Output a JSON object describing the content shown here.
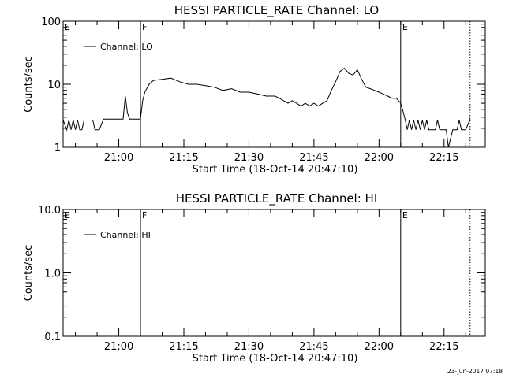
{
  "footer": {
    "timestamp": "23-Jun-2017 07:18"
  },
  "chart_data": [
    {
      "type": "line",
      "title": "HESSI PARTICLE_RATE Channel: LO",
      "xlabel": "Start Time (18-Oct-14 20:47:10)",
      "ylabel": "Counts/sec",
      "yscale": "log",
      "xlim": [
        "20:47:10",
        "22:24:30"
      ],
      "ylim": [
        1,
        100
      ],
      "xticks": [
        "21:00",
        "21:15",
        "21:30",
        "21:45",
        "22:00",
        "22:15"
      ],
      "yticks": [
        {
          "value": 1,
          "label": "1"
        },
        {
          "value": 10,
          "label": "10"
        },
        {
          "value": 100,
          "label": "100"
        }
      ],
      "legend": {
        "position": "top-left",
        "entries": [
          "Channel: LO"
        ]
      },
      "markers": [
        {
          "time": "21:05:00",
          "label": "F",
          "style": "solid"
        },
        {
          "time": "22:05:00",
          "label": "E",
          "style": "solid"
        },
        {
          "time": "22:21:00",
          "label": "",
          "style": "dotted"
        }
      ],
      "corner_label": "E",
      "series": [
        {
          "name": "Channel: LO",
          "x": [
            "20:47:10",
            "20:48:00",
            "20:48:30",
            "20:49:00",
            "20:49:30",
            "20:50:00",
            "20:50:30",
            "20:51:00",
            "20:51:30",
            "20:52:00",
            "20:53:00",
            "20:54:00",
            "20:54:30",
            "20:55:30",
            "20:56:30",
            "20:58:00",
            "21:00:00",
            "21:01:00",
            "21:01:30",
            "21:02:00",
            "21:02:30",
            "21:05:00",
            "21:05:30",
            "21:06:00",
            "21:07:00",
            "21:08:00",
            "21:10:00",
            "21:12:00",
            "21:14:00",
            "21:16:00",
            "21:18:00",
            "21:20:00",
            "21:22:00",
            "21:24:00",
            "21:26:00",
            "21:28:00",
            "21:30:00",
            "21:32:00",
            "21:34:00",
            "21:36:00",
            "21:37:00",
            "21:38:00",
            "21:39:00",
            "21:40:00",
            "21:41:00",
            "21:42:00",
            "21:43:00",
            "21:44:00",
            "21:45:00",
            "21:46:00",
            "21:47:00",
            "21:48:00",
            "21:49:00",
            "21:50:00",
            "21:51:00",
            "21:52:00",
            "21:53:00",
            "21:54:00",
            "21:55:00",
            "21:56:00",
            "21:57:00",
            "21:58:00",
            "21:59:00",
            "22:00:00",
            "22:01:00",
            "22:02:00",
            "22:03:00",
            "22:04:00",
            "22:05:00",
            "22:05:30",
            "22:06:00",
            "22:06:30",
            "22:07:00",
            "22:07:30",
            "22:08:00",
            "22:08:30",
            "22:09:00",
            "22:09:30",
            "22:10:00",
            "22:10:30",
            "22:11:00",
            "22:11:30",
            "22:12:00",
            "22:12:30",
            "22:13:00",
            "22:13:30",
            "22:14:00",
            "22:14:30",
            "22:15:00",
            "22:15:30",
            "22:16:00",
            "22:17:00",
            "22:18:00",
            "22:18:30",
            "22:19:00",
            "22:20:00",
            "22:21:00"
          ],
          "y": [
            2.7,
            1.9,
            2.7,
            1.9,
            2.7,
            1.9,
            2.7,
            1.9,
            1.9,
            2.7,
            2.7,
            2.7,
            1.9,
            1.9,
            2.8,
            2.8,
            2.8,
            2.8,
            6.5,
            3.5,
            2.8,
            2.8,
            5.5,
            7.5,
            10,
            11.5,
            12,
            12.5,
            11,
            10,
            10,
            9.5,
            9,
            8,
            8.5,
            7.5,
            7.5,
            7,
            6.5,
            6.5,
            6,
            5.5,
            5,
            5.5,
            5,
            4.5,
            5,
            4.5,
            5,
            4.5,
            5,
            5.5,
            8,
            11,
            16,
            18,
            15,
            14,
            17,
            12,
            9,
            8.5,
            8,
            7.5,
            7,
            6.5,
            6,
            6,
            5,
            3.8,
            2.8,
            1.9,
            2.7,
            1.9,
            2.7,
            1.9,
            2.7,
            1.9,
            2.7,
            1.9,
            2.7,
            1.9,
            1.9,
            1.9,
            1.9,
            2.7,
            1.9,
            1.9,
            1.9,
            1.9,
            1.0,
            1.9,
            1.9,
            2.7,
            1.9,
            1.9,
            2.8
          ]
        }
      ]
    },
    {
      "type": "line",
      "title": "HESSI PARTICLE_RATE Channel: HI",
      "xlabel": "Start Time (18-Oct-14 20:47:10)",
      "ylabel": "Counts/sec",
      "yscale": "log",
      "xlim": [
        "20:47:10",
        "22:24:30"
      ],
      "ylim": [
        0.1,
        10
      ],
      "xticks": [
        "21:00",
        "21:15",
        "21:30",
        "21:45",
        "22:00",
        "22:15"
      ],
      "yticks": [
        {
          "value": 0.1,
          "label": "0.1"
        },
        {
          "value": 1,
          "label": "1.0"
        },
        {
          "value": 10,
          "label": "10.0"
        }
      ],
      "legend": {
        "position": "top-left",
        "entries": [
          "Channel: HI"
        ]
      },
      "markers": [
        {
          "time": "21:05:00",
          "label": "F",
          "style": "solid"
        },
        {
          "time": "22:05:00",
          "label": "E",
          "style": "solid"
        },
        {
          "time": "22:21:00",
          "label": "",
          "style": "dotted"
        }
      ],
      "corner_label": "E",
      "series": [
        {
          "name": "Channel: HI",
          "x": [],
          "y": []
        }
      ]
    }
  ]
}
